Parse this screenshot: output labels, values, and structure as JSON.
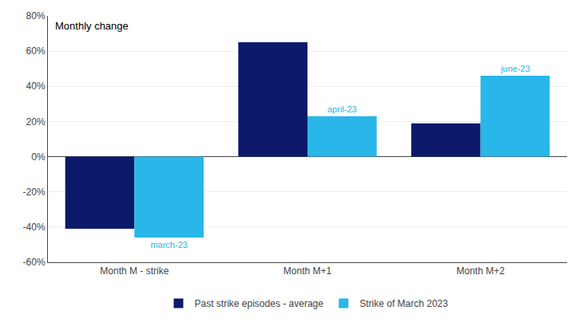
{
  "chart_data": {
    "type": "bar",
    "categories": [
      "Month M - strike",
      "Month M+1",
      "Month M+2"
    ],
    "series": [
      {
        "name": "Past strike episodes - average",
        "color": "#0d1a6b",
        "values": [
          -41,
          65,
          19
        ]
      },
      {
        "name": "Strike of March 2023",
        "color": "#29b6e8",
        "values": [
          -46,
          23,
          46
        ]
      }
    ],
    "annotations": [
      {
        "text": "Monthly change"
      },
      {
        "text": "march-23",
        "series": "Strike of March 2023",
        "category": "Month M - strike"
      },
      {
        "text": "april-23",
        "series": "Strike of March 2023",
        "category": "Month M+1"
      },
      {
        "text": "june-23",
        "series": "Strike of March 2023",
        "category": "Month M+2"
      }
    ],
    "ylim": [
      -60,
      80
    ],
    "yticks": [
      {
        "value": -60,
        "label": "-60%"
      },
      {
        "value": -40,
        "label": "-40%"
      },
      {
        "value": -20,
        "label": "-20%"
      },
      {
        "value": 0,
        "label": "0%"
      },
      {
        "value": 20,
        "label": "20%"
      },
      {
        "value": 40,
        "label": "40%"
      },
      {
        "value": 60,
        "label": "60%"
      },
      {
        "value": 80,
        "label": "80%"
      }
    ],
    "grid": true,
    "legend": "bottom"
  }
}
